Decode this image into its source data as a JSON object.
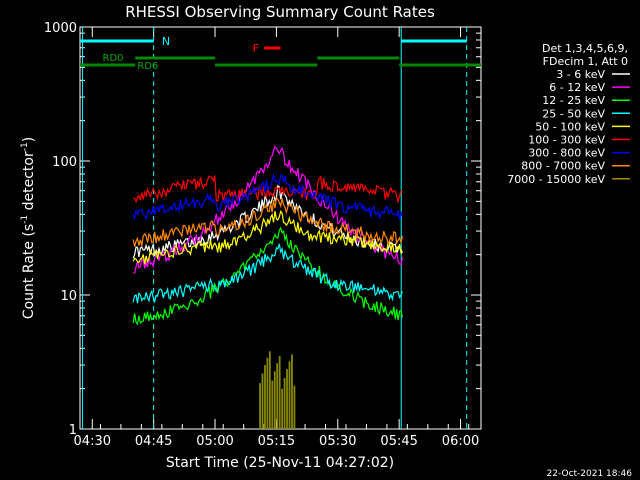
{
  "chart_data": {
    "type": "line",
    "title": "RHESSI Observing Summary Count Rates",
    "xlabel": "Start Time (25-Nov-11 04:27:02)",
    "ylabel_main": "Count Rate (s",
    "ylabel_sup1": "-1",
    "ylabel_mid": " detector",
    "ylabel_sup2": "-1",
    "ylabel_end": ")",
    "y_scale": "log",
    "ylim": [
      1,
      1000
    ],
    "y_ticks": [
      {
        "v": 1,
        "label": "1"
      },
      {
        "v": 10,
        "label": "10"
      },
      {
        "v": 100,
        "label": "100"
      },
      {
        "v": 1000,
        "label": "1000"
      }
    ],
    "x_unit": "minutes since 04:27:02",
    "xlim": [
      0,
      98
    ],
    "x_ticks": [
      {
        "v": 3,
        "label": "04:30"
      },
      {
        "v": 18,
        "label": "04:45"
      },
      {
        "v": 33,
        "label": "05:00"
      },
      {
        "v": 48,
        "label": "05:15"
      },
      {
        "v": 63,
        "label": "05:30"
      },
      {
        "v": 78,
        "label": "05:45"
      },
      {
        "v": 93,
        "label": "06:00"
      }
    ],
    "legend_header": [
      "Det 1,3,4,5,6,9,",
      "FDecim 1, Att 0"
    ],
    "footer_date": "22-Oct-2021 18:46",
    "series": [
      {
        "name": "3 - 6 keV",
        "color": "#ffffff",
        "base": 20,
        "peak": 60,
        "night": 14
      },
      {
        "name": "6 - 12 keV",
        "color": "#ff00ff",
        "base": 13,
        "peak": 120,
        "night": 17
      },
      {
        "name": "12 - 25 keV",
        "color": "#00ff00",
        "base": 6,
        "peak": 30,
        "night": 5
      },
      {
        "name": "25 - 50 keV",
        "color": "#00ffff",
        "base": 9,
        "peak": 22,
        "night": 10
      },
      {
        "name": "50 - 100 keV",
        "color": "#ffff00",
        "base": 18,
        "peak": 40,
        "night": 22
      },
      {
        "name": "100 - 300 keV",
        "color": "#ff0000",
        "base": 54,
        "peak": 60,
        "night": 55
      },
      {
        "name": "300 - 800 keV",
        "color": "#0000ff",
        "base": 39,
        "peak": 75,
        "night": 38
      },
      {
        "name": "800 - 7000 keV",
        "color": "#ff8800",
        "base": 25,
        "peak": 50,
        "night": 26
      },
      {
        "name": "7000 - 15000 keV",
        "color": "#aa8800",
        "base": 0,
        "peak": 0,
        "night": 0
      }
    ],
    "annotations": {
      "night_label": "N",
      "flare_label": "F",
      "rd0_label": "RD0",
      "rd6_label": "RD6"
    }
  }
}
